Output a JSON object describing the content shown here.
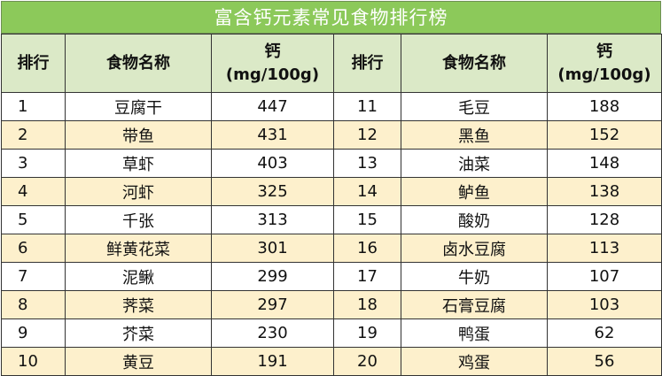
{
  "title": "富含钙元素常见食物排行榜",
  "headers": {
    "rank": "排行",
    "food": "食物名称",
    "calcium_line1": "钙",
    "calcium_line2": "(mg/100g)"
  },
  "rows": [
    {
      "rank_a": "1",
      "food_a": "豆腐干",
      "ca_a": "447",
      "rank_b": "11",
      "food_b": "毛豆",
      "ca_b": "188"
    },
    {
      "rank_a": "2",
      "food_a": "带鱼",
      "ca_a": "431",
      "rank_b": "12",
      "food_b": "黑鱼",
      "ca_b": "152"
    },
    {
      "rank_a": "3",
      "food_a": "草虾",
      "ca_a": "403",
      "rank_b": "13",
      "food_b": "油菜",
      "ca_b": "148"
    },
    {
      "rank_a": "4",
      "food_a": "河虾",
      "ca_a": "325",
      "rank_b": "14",
      "food_b": "鲈鱼",
      "ca_b": "138"
    },
    {
      "rank_a": "5",
      "food_a": "千张",
      "ca_a": "313",
      "rank_b": "15",
      "food_b": "酸奶",
      "ca_b": "128"
    },
    {
      "rank_a": "6",
      "food_a": "鲜黄花菜",
      "ca_a": "301",
      "rank_b": "16",
      "food_b": "卤水豆腐",
      "ca_b": "113"
    },
    {
      "rank_a": "7",
      "food_a": "泥鳅",
      "ca_a": "299",
      "rank_b": "17",
      "food_b": "牛奶",
      "ca_b": "107"
    },
    {
      "rank_a": "8",
      "food_a": "荠菜",
      "ca_a": "297",
      "rank_b": "18",
      "food_b": "石膏豆腐",
      "ca_b": "103"
    },
    {
      "rank_a": "9",
      "food_a": "芥菜",
      "ca_a": "230",
      "rank_b": "19",
      "food_b": "鸭蛋",
      "ca_b": "62"
    },
    {
      "rank_a": "10",
      "food_a": "黄豆",
      "ca_a": "191",
      "rank_b": "20",
      "food_b": "鸡蛋",
      "ca_b": "56"
    }
  ],
  "colors": {
    "title_bg": "#8cc95a",
    "header_bg": "#dbe9c7",
    "alt_row_bg": "#fdf0cc",
    "row_bg": "#ffffff"
  }
}
